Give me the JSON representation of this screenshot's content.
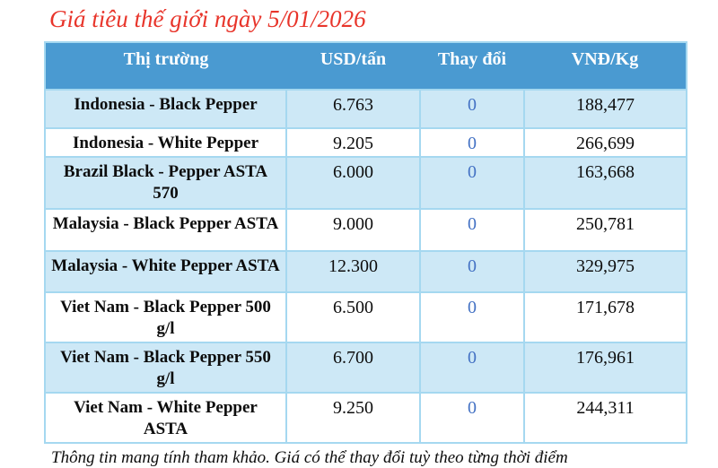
{
  "title": {
    "text": "Giá tiêu thế giới ngày 5/01/2026",
    "color": "#e8352b"
  },
  "table": {
    "columns": [
      "Thị trường",
      "USD/tấn",
      "Thay đổi",
      "VNĐ/Kg"
    ],
    "rows": [
      {
        "market": "Indonesia - Black Pepper",
        "usd_per_ton": "6.763",
        "change": "0",
        "vnd_per_kg": "188,477"
      },
      {
        "market": "Indonesia - White Pepper",
        "usd_per_ton": "9.205",
        "change": "0",
        "vnd_per_kg": "266,699"
      },
      {
        "market": "Brazil Black - Pepper ASTA 570",
        "usd_per_ton": "6.000",
        "change": "0",
        "vnd_per_kg": "163,668"
      },
      {
        "market": "Malaysia - Black Pepper ASTA",
        "usd_per_ton": "9.000",
        "change": "0",
        "vnd_per_kg": "250,781"
      },
      {
        "market": "Malaysia - White Pepper ASTA",
        "usd_per_ton": "12.300",
        "change": "0",
        "vnd_per_kg": "329,975"
      },
      {
        "market": "Viet Nam - Black Pepper 500 g/l",
        "usd_per_ton": "6.500",
        "change": "0",
        "vnd_per_kg": "171,678"
      },
      {
        "market": "Viet Nam - Black Pepper 550 g/l",
        "usd_per_ton": "6.700",
        "change": "0",
        "vnd_per_kg": "176,961"
      },
      {
        "market": "Viet Nam - White Pepper ASTA",
        "usd_per_ton": "9.250",
        "change": "0",
        "vnd_per_kg": "244,311"
      }
    ],
    "colors": {
      "header_bg": "#4a9ad1",
      "header_text": "#ffffff",
      "stripe_bg": "#cde8f6",
      "border": "#a5d8f0",
      "change_text": "#4472c4"
    }
  },
  "footer": {
    "text": "Thông tin mang tính tham khảo. Giá có thể thay đổi tuỳ theo từng thời điểm"
  }
}
